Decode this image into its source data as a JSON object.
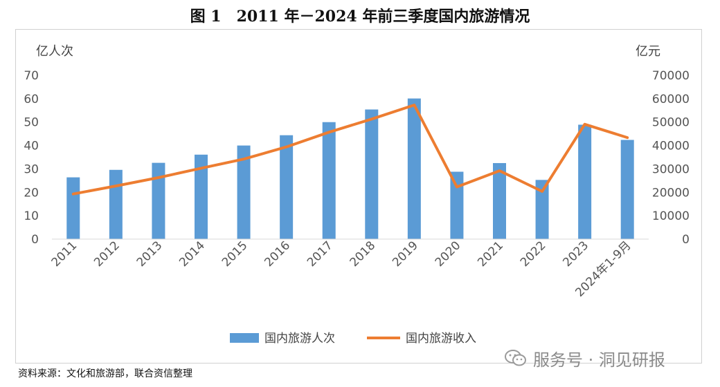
{
  "figure_title": "图 1　2011 年－2024 年前三季度国内旅游情况",
  "source_note": "资料来源：文化和旅游部，联合资信整理",
  "watermark": {
    "text": "服务号 · 洞见研报",
    "icon": "wechat-icon"
  },
  "colors": {
    "bar": "#5B9BD5",
    "line": "#ED7D31",
    "axis": "#d9d9d9"
  },
  "chart_data": {
    "type": "bar",
    "title": "",
    "categories": [
      "2011",
      "2012",
      "2013",
      "2014",
      "2015",
      "2016",
      "2017",
      "2018",
      "2019",
      "2020",
      "2021",
      "2022",
      "2023",
      "2024年1-9月"
    ],
    "series": [
      {
        "name": "国内旅游人次",
        "type": "bar",
        "axis": "left",
        "values": [
          26.4,
          29.6,
          32.6,
          36.1,
          40.0,
          44.4,
          50.0,
          55.4,
          60.1,
          28.8,
          32.5,
          25.3,
          48.9,
          42.4
        ]
      },
      {
        "name": "国内旅游收入",
        "type": "line",
        "axis": "right",
        "values": [
          19300,
          22700,
          26300,
          30300,
          34200,
          39400,
          45700,
          51300,
          57300,
          22300,
          29200,
          20400,
          49100,
          43400
        ]
      }
    ],
    "ylabel_left": "亿人次",
    "ylabel_right": "亿元",
    "ylim_left": [
      0,
      70
    ],
    "ylim_right": [
      0,
      70000
    ],
    "yticks_left": [
      "0",
      "10",
      "20",
      "30",
      "40",
      "50",
      "60",
      "70"
    ],
    "yticks_right": [
      "0",
      "10000",
      "20000",
      "30000",
      "40000",
      "50000",
      "60000",
      "70000"
    ],
    "legend": [
      "国内旅游人次",
      "国内旅游收入"
    ],
    "legend_position": "bottom"
  }
}
